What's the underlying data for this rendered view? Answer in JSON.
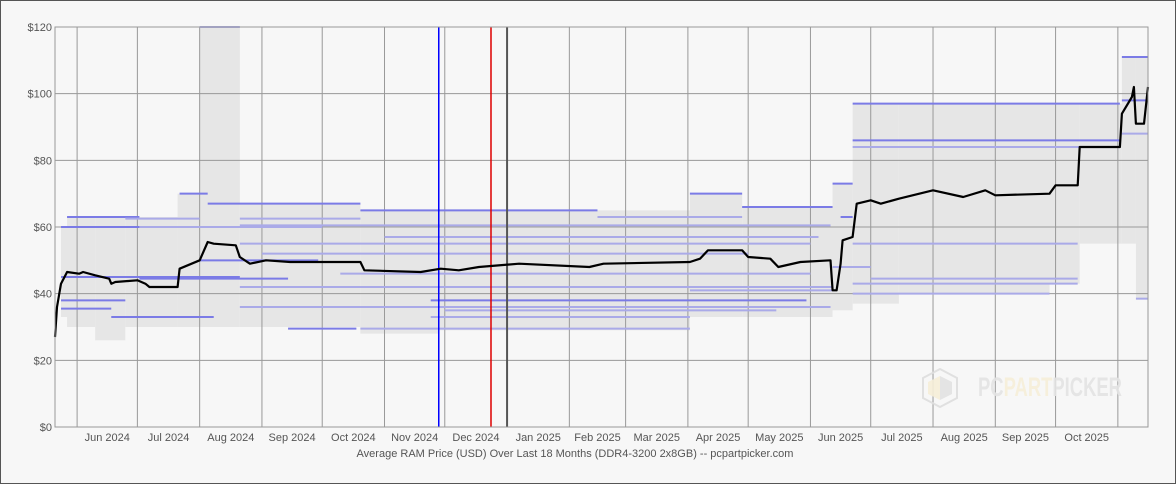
{
  "chart_data": {
    "type": "line",
    "title": "",
    "caption": "Average RAM Price (USD) Over Last 18 Months (DDR4-3200 2x8GB) -- pcpartpicker.com",
    "xlabel": "",
    "ylabel": "",
    "ylim": [
      0,
      120
    ],
    "xlim": [
      "2024-05-21",
      "2025-11-16"
    ],
    "grid": true,
    "y_ticks": [
      "$0",
      "$20",
      "$40",
      "$60",
      "$80",
      "$100",
      "$120"
    ],
    "y_tick_values": [
      0,
      20,
      40,
      60,
      80,
      100,
      120
    ],
    "x_ticks": [
      {
        "date": "2024-06-01",
        "label": "Jun 2024"
      },
      {
        "date": "2024-07-01",
        "label": "Jul 2024"
      },
      {
        "date": "2024-08-01",
        "label": "Aug 2024"
      },
      {
        "date": "2024-09-01",
        "label": "Sep 2024"
      },
      {
        "date": "2024-10-01",
        "label": "Oct 2024"
      },
      {
        "date": "2024-11-01",
        "label": "Nov 2024"
      },
      {
        "date": "2024-12-01",
        "label": "Dec 2024"
      },
      {
        "date": "2025-01-01",
        "label": "Jan 2025"
      },
      {
        "date": "2025-02-01",
        "label": "Feb 2025"
      },
      {
        "date": "2025-03-01",
        "label": "Mar 2025"
      },
      {
        "date": "2025-04-01",
        "label": "Apr 2025"
      },
      {
        "date": "2025-05-01",
        "label": "May 2025"
      },
      {
        "date": "2025-06-01",
        "label": "Jun 2025"
      },
      {
        "date": "2025-07-01",
        "label": "Jul 2025"
      },
      {
        "date": "2025-08-01",
        "label": "Aug 2025"
      },
      {
        "date": "2025-09-01",
        "label": "Sep 2025"
      },
      {
        "date": "2025-10-01",
        "label": "Oct 2025"
      },
      {
        "date": "2025-11-01",
        "label": null
      }
    ],
    "markers": [
      {
        "date": "2024-11-28",
        "color": "#0000ff"
      },
      {
        "date": "2024-12-24",
        "color": "#dd0000"
      },
      {
        "date": "2025-01-01",
        "color": "#555555"
      }
    ],
    "colors": {
      "average": "#000000",
      "range": "#e6e6e6",
      "retailer_strong": "#7b7be6",
      "retailer_light": "#aaaae8",
      "grid": "#999999"
    },
    "average": [
      [
        "2024-05-21",
        27
      ],
      [
        "2024-05-22",
        36
      ],
      [
        "2024-05-24",
        43
      ],
      [
        "2024-05-27",
        46.5
      ],
      [
        "2024-06-02",
        46
      ],
      [
        "2024-06-04",
        46.5
      ],
      [
        "2024-06-10",
        45.5
      ],
      [
        "2024-06-17",
        44.5
      ],
      [
        "2024-06-18",
        43
      ],
      [
        "2024-06-20",
        43.5
      ],
      [
        "2024-07-01",
        44
      ],
      [
        "2024-07-05",
        43
      ],
      [
        "2024-07-07",
        42
      ],
      [
        "2024-07-21",
        42
      ],
      [
        "2024-07-22",
        47.5
      ],
      [
        "2024-07-28",
        49
      ],
      [
        "2024-08-01",
        50
      ],
      [
        "2024-08-05",
        55.5
      ],
      [
        "2024-08-08",
        55
      ],
      [
        "2024-08-19",
        54.5
      ],
      [
        "2024-08-21",
        51
      ],
      [
        "2024-08-26",
        49
      ],
      [
        "2024-09-03",
        50
      ],
      [
        "2024-09-15",
        49.5
      ],
      [
        "2024-10-20",
        49.5
      ],
      [
        "2024-10-22",
        47
      ],
      [
        "2024-11-19",
        46.5
      ],
      [
        "2024-11-29",
        47.5
      ],
      [
        "2024-12-08",
        47
      ],
      [
        "2024-12-18",
        48
      ],
      [
        "2025-01-07",
        49
      ],
      [
        "2025-02-11",
        48
      ],
      [
        "2025-02-18",
        49
      ],
      [
        "2025-04-02",
        49.5
      ],
      [
        "2025-04-07",
        50.5
      ],
      [
        "2025-04-11",
        53
      ],
      [
        "2025-04-28",
        53
      ],
      [
        "2025-05-01",
        51
      ],
      [
        "2025-05-12",
        50.5
      ],
      [
        "2025-05-16",
        48
      ],
      [
        "2025-05-27",
        49.5
      ],
      [
        "2025-06-11",
        50
      ],
      [
        "2025-06-12",
        41
      ],
      [
        "2025-06-14",
        41
      ],
      [
        "2025-06-16",
        49
      ],
      [
        "2025-06-17",
        56
      ],
      [
        "2025-06-22",
        57
      ],
      [
        "2025-06-24",
        67
      ],
      [
        "2025-07-01",
        68
      ],
      [
        "2025-07-06",
        67
      ],
      [
        "2025-07-15",
        68.5
      ],
      [
        "2025-08-01",
        71
      ],
      [
        "2025-08-16",
        69
      ],
      [
        "2025-08-27",
        71
      ],
      [
        "2025-09-01",
        69.5
      ],
      [
        "2025-09-28",
        70
      ],
      [
        "2025-10-01",
        72.5
      ],
      [
        "2025-10-12",
        72.5
      ],
      [
        "2025-10-13",
        84
      ],
      [
        "2025-11-02",
        84
      ],
      [
        "2025-11-03",
        94
      ],
      [
        "2025-11-08",
        99
      ],
      [
        "2025-11-09",
        102
      ],
      [
        "2025-11-10",
        91
      ],
      [
        "2025-11-14",
        91
      ],
      [
        "2025-11-16",
        102
      ]
    ],
    "range_bands": [
      [
        "2024-05-24",
        "2024-05-27",
        33,
        60
      ],
      [
        "2024-05-27",
        "2024-06-10",
        30,
        63
      ],
      [
        "2024-06-10",
        "2024-06-25",
        26,
        63
      ],
      [
        "2024-06-25",
        "2024-07-21",
        30,
        63
      ],
      [
        "2024-07-21",
        "2024-08-01",
        30,
        70
      ],
      [
        "2024-08-01",
        "2024-08-21",
        30,
        120
      ],
      [
        "2024-08-21",
        "2024-10-20",
        30,
        67
      ],
      [
        "2024-10-20",
        "2024-11-28",
        28,
        65
      ],
      [
        "2024-11-28",
        "2025-04-02",
        29,
        65
      ],
      [
        "2025-04-02",
        "2025-04-28",
        33,
        70
      ],
      [
        "2025-04-28",
        "2025-06-12",
        33,
        66
      ],
      [
        "2025-06-12",
        "2025-06-22",
        35,
        73
      ],
      [
        "2025-06-22",
        "2025-07-15",
        37,
        97
      ],
      [
        "2025-07-15",
        "2025-09-28",
        40,
        97
      ],
      [
        "2025-09-28",
        "2025-10-13",
        43,
        97
      ],
      [
        "2025-10-13",
        "2025-11-03",
        55,
        97
      ],
      [
        "2025-11-03",
        "2025-11-10",
        55,
        111
      ],
      [
        "2025-11-10",
        "2025-11-16",
        38.5,
        111
      ]
    ],
    "retailer_prices": [
      [
        "2024-05-27",
        "2024-07-02",
        63,
        "strong"
      ],
      [
        "2024-05-24",
        "2024-07-02",
        60,
        "strong"
      ],
      [
        "2024-07-02",
        "2024-10-01",
        60,
        "light"
      ],
      [
        "2024-05-24",
        "2024-08-21",
        45,
        "strong"
      ],
      [
        "2024-05-24",
        "2024-06-25",
        38,
        "strong"
      ],
      [
        "2024-05-24",
        "2024-06-18",
        35.5,
        "strong"
      ],
      [
        "2024-06-18",
        "2024-08-08",
        33,
        "strong"
      ],
      [
        "2024-07-22",
        "2024-08-05",
        70,
        "strong"
      ],
      [
        "2024-08-05",
        "2024-10-20",
        67,
        "strong"
      ],
      [
        "2024-08-01",
        "2024-08-21",
        120,
        "light"
      ],
      [
        "2024-10-20",
        "2025-02-15",
        65,
        "strong"
      ],
      [
        "2024-07-02",
        "2024-09-14",
        44.5,
        "strong"
      ],
      [
        "2024-08-01",
        "2024-09-29",
        50,
        "strong"
      ],
      [
        "2024-09-14",
        "2024-10-18",
        29.5,
        "strong"
      ],
      [
        "2024-11-24",
        "2025-05-30",
        38,
        "strong"
      ],
      [
        "2025-04-02",
        "2025-04-28",
        70,
        "strong"
      ],
      [
        "2025-04-28",
        "2025-06-12",
        66,
        "strong"
      ],
      [
        "2025-06-12",
        "2025-06-22",
        73,
        "strong"
      ],
      [
        "2025-06-16",
        "2025-06-22",
        63,
        "strong"
      ],
      [
        "2025-06-22",
        "2025-11-02",
        97,
        "strong"
      ],
      [
        "2025-06-22",
        "2025-11-02",
        86,
        "strong"
      ],
      [
        "2025-06-22",
        "2025-11-02",
        84,
        "light"
      ],
      [
        "2025-11-03",
        "2025-11-16",
        111,
        "strong"
      ],
      [
        "2025-11-03",
        "2025-11-16",
        98,
        "strong"
      ],
      [
        "2025-11-03",
        "2025-11-16",
        88,
        "light"
      ],
      [
        "2025-11-10",
        "2025-11-16",
        38.5,
        "light"
      ],
      [
        "2025-06-22",
        "2025-09-28",
        40,
        "light"
      ],
      [
        "2025-06-22",
        "2025-10-12",
        43,
        "light"
      ],
      [
        "2025-06-22",
        "2025-10-12",
        55,
        "light"
      ],
      [
        "2025-07-01",
        "2025-10-12",
        44.5,
        "light"
      ],
      [
        "2024-10-20",
        "2025-04-02",
        29.5,
        "light"
      ],
      [
        "2024-11-24",
        "2025-04-02",
        33,
        "light"
      ],
      [
        "2024-08-21",
        "2025-06-12",
        42,
        "light"
      ],
      [
        "2024-08-21",
        "2025-06-01",
        55,
        "light"
      ],
      [
        "2024-08-21",
        "2025-06-11",
        60.5,
        "light"
      ],
      [
        "2024-09-01",
        "2025-05-01",
        52,
        "light"
      ],
      [
        "2024-10-10",
        "2025-06-01",
        46,
        "light"
      ],
      [
        "2024-12-01",
        "2025-05-15",
        35,
        "light"
      ],
      [
        "2024-08-21",
        "2025-06-11",
        36,
        "light"
      ],
      [
        "2025-02-15",
        "2025-04-28",
        63,
        "light"
      ],
      [
        "2024-11-01",
        "2025-06-05",
        57,
        "light"
      ],
      [
        "2024-08-21",
        "2024-10-20",
        62.5,
        "light"
      ],
      [
        "2024-06-25",
        "2024-08-01",
        62.5,
        "light"
      ],
      [
        "2025-06-12",
        "2025-07-01",
        48,
        "light"
      ],
      [
        "2025-04-02",
        "2025-06-12",
        41,
        "light"
      ]
    ]
  },
  "watermark": {
    "part1": "PC",
    "part2": "PART",
    "part3": "PICKER"
  }
}
